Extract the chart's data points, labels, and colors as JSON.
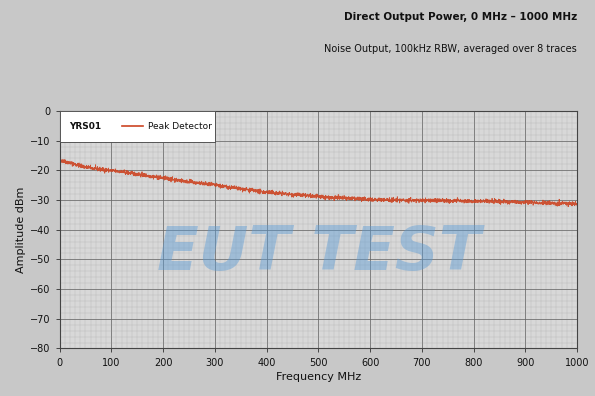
{
  "title_line1": "Direct Output Power, 0 MHz – 1000 MHz",
  "title_line2": "Noise Output, 100kHz RBW, averaged over 8 traces",
  "xlabel": "Frequency MHz",
  "ylabel": "Amplitude dBm",
  "xlim": [
    0,
    1000
  ],
  "ylim": [
    -80,
    0
  ],
  "yticks": [
    0,
    -10,
    -20,
    -30,
    -40,
    -50,
    -60,
    -70,
    -80
  ],
  "xticks": [
    0,
    100,
    200,
    300,
    400,
    500,
    600,
    700,
    800,
    900,
    1000
  ],
  "legend_device": "YRS01",
  "legend_trace": "Peak Detector",
  "line_color": "#cc4422",
  "fig_facecolor": "#c8c8c8",
  "background_color": "#d8d8d8",
  "grid_major_color": "#666666",
  "grid_minor_color": "#999999",
  "watermark_text": "EUT TEST",
  "watermark_color": "#5b9bd5",
  "watermark_alpha": 0.45,
  "curve_x": [
    0,
    10,
    20,
    30,
    40,
    50,
    60,
    70,
    80,
    90,
    100,
    120,
    140,
    160,
    180,
    200,
    220,
    240,
    260,
    280,
    300,
    320,
    340,
    360,
    380,
    400,
    420,
    440,
    460,
    480,
    500,
    520,
    540,
    560,
    580,
    600,
    620,
    640,
    660,
    680,
    700,
    720,
    740,
    760,
    780,
    800,
    820,
    840,
    860,
    880,
    900,
    920,
    940,
    960,
    980,
    1000
  ],
  "curve_y": [
    -16.5,
    -17.0,
    -17.5,
    -18.0,
    -18.5,
    -18.9,
    -19.2,
    -19.5,
    -19.7,
    -19.9,
    -20.1,
    -20.5,
    -21.0,
    -21.6,
    -22.1,
    -22.6,
    -23.1,
    -23.6,
    -24.1,
    -24.6,
    -25.0,
    -25.5,
    -26.0,
    -26.5,
    -27.0,
    -27.4,
    -27.7,
    -28.0,
    -28.3,
    -28.6,
    -28.9,
    -29.1,
    -29.3,
    -29.5,
    -29.6,
    -29.8,
    -29.9,
    -30.0,
    -30.0,
    -30.1,
    -30.1,
    -30.2,
    -30.2,
    -30.3,
    -30.3,
    -30.4,
    -30.4,
    -30.5,
    -30.6,
    -30.7,
    -30.8,
    -30.9,
    -31.0,
    -31.1,
    -31.2,
    -31.3
  ]
}
